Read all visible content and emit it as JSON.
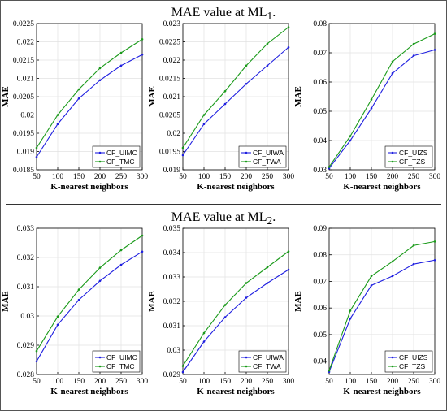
{
  "titles": {
    "top": "MAE value at ML",
    "top_sub": "1",
    "bottom": "MAE value at ML",
    "bottom_sub": "2"
  },
  "colors": {
    "blue": "#1f1fe0",
    "green": "#1a9a1a"
  },
  "chart_data": [
    {
      "type": "line",
      "xlabel": "K-nearest neighbors",
      "ylabel": "MAE",
      "x": [
        50,
        100,
        150,
        200,
        250,
        300
      ],
      "xlim": [
        50,
        300
      ],
      "ylim": [
        0.0185,
        0.0225
      ],
      "yticks": [
        "0.0185",
        "0.019",
        "0.0195",
        "0.02",
        "0.0205",
        "0.021",
        "0.0215",
        "0.022",
        "0.0225"
      ],
      "ytick_values": [
        0.0185,
        0.019,
        0.0195,
        0.02,
        0.0205,
        0.021,
        0.0215,
        0.022,
        0.0225
      ],
      "xticks": [
        "50",
        "100",
        "150",
        "200",
        "250",
        "300"
      ],
      "legend": "bottom-right",
      "series": [
        {
          "name": "CF_UIMC",
          "color": "blue",
          "values": [
            0.01885,
            0.01975,
            0.02045,
            0.02095,
            0.02135,
            0.02165
          ]
        },
        {
          "name": "CF_TMC",
          "color": "green",
          "values": [
            0.0191,
            0.02,
            0.0207,
            0.02128,
            0.0217,
            0.02207
          ]
        }
      ]
    },
    {
      "type": "line",
      "xlabel": "K-nearest neighbors",
      "ylabel": "MAE",
      "x": [
        50,
        100,
        150,
        200,
        250,
        300
      ],
      "xlim": [
        50,
        300
      ],
      "ylim": [
        0.019,
        0.023
      ],
      "yticks": [
        "0.019",
        "0.0195",
        "0.02",
        "0.0205",
        "0.021",
        "0.0215",
        "0.022",
        "0.0225",
        "0.023"
      ],
      "ytick_values": [
        0.019,
        0.0195,
        0.02,
        0.0205,
        0.021,
        0.0215,
        0.022,
        0.0225,
        0.023
      ],
      "xticks": [
        "50",
        "100",
        "150",
        "200",
        "250",
        "300"
      ],
      "legend": "bottom-right",
      "series": [
        {
          "name": "CF_UIWA",
          "color": "blue",
          "values": [
            0.0194,
            0.02025,
            0.0208,
            0.02135,
            0.02185,
            0.02235
          ]
        },
        {
          "name": "CF_TWA",
          "color": "green",
          "values": [
            0.0196,
            0.0205,
            0.02115,
            0.02185,
            0.02245,
            0.0229
          ]
        }
      ]
    },
    {
      "type": "line",
      "xlabel": "K-nearest neighbors",
      "ylabel": "MAE",
      "x": [
        50,
        100,
        150,
        200,
        250,
        300
      ],
      "xlim": [
        50,
        300
      ],
      "ylim": [
        0.03,
        0.08
      ],
      "yticks": [
        "0.03",
        "0.04",
        "0.05",
        "0.06",
        "0.07",
        "0.08"
      ],
      "ytick_values": [
        0.03,
        0.04,
        0.05,
        0.06,
        0.07,
        0.08
      ],
      "xticks": [
        "50",
        "100",
        "150",
        "200",
        "250",
        "300"
      ],
      "legend": "bottom-right",
      "series": [
        {
          "name": "CF_UIZS",
          "color": "blue",
          "values": [
            0.0305,
            0.04,
            0.051,
            0.063,
            0.069,
            0.071
          ]
        },
        {
          "name": "CF_TZS",
          "color": "green",
          "values": [
            0.031,
            0.0415,
            0.054,
            0.067,
            0.073,
            0.0765
          ]
        }
      ]
    },
    {
      "type": "line",
      "xlabel": "K-nearest neighbors",
      "ylabel": "MAE",
      "x": [
        50,
        100,
        150,
        200,
        250,
        300
      ],
      "xlim": [
        50,
        300
      ],
      "ylim": [
        0.028,
        0.033
      ],
      "yticks": [
        "0.028",
        "0.029",
        "0.03",
        "0.031",
        "0.032",
        "0.033"
      ],
      "ytick_values": [
        0.028,
        0.029,
        0.03,
        0.031,
        0.032,
        0.033
      ],
      "xticks": [
        "50",
        "100",
        "150",
        "200",
        "250",
        "300"
      ],
      "legend": "bottom-right",
      "series": [
        {
          "name": "CF_UIMC",
          "color": "blue",
          "values": [
            0.02845,
            0.0297,
            0.03055,
            0.0312,
            0.03175,
            0.0322
          ]
        },
        {
          "name": "CF_TMC",
          "color": "green",
          "values": [
            0.0288,
            0.02998,
            0.0309,
            0.03165,
            0.03225,
            0.03275
          ]
        }
      ]
    },
    {
      "type": "line",
      "xlabel": "K-nearest neighbors",
      "ylabel": "MAE",
      "x": [
        50,
        100,
        150,
        200,
        250,
        300
      ],
      "xlim": [
        50,
        300
      ],
      "ylim": [
        0.029,
        0.035
      ],
      "yticks": [
        "0.029",
        "0.03",
        "0.031",
        "0.032",
        "0.033",
        "0.034",
        "0.035"
      ],
      "ytick_values": [
        0.029,
        0.03,
        0.031,
        0.032,
        0.033,
        0.034,
        0.035
      ],
      "xticks": [
        "50",
        "100",
        "150",
        "200",
        "250",
        "300"
      ],
      "legend": "bottom-right",
      "series": [
        {
          "name": "CF_UIWA",
          "color": "blue",
          "values": [
            0.0291,
            0.03035,
            0.03135,
            0.03215,
            0.03275,
            0.0333
          ]
        },
        {
          "name": "CF_TWA",
          "color": "green",
          "values": [
            0.02935,
            0.0307,
            0.03185,
            0.03275,
            0.0334,
            0.03405
          ]
        }
      ]
    },
    {
      "type": "line",
      "xlabel": "K-nearest neighbors",
      "ylabel": "MAE",
      "x": [
        50,
        100,
        150,
        200,
        250,
        300
      ],
      "xlim": [
        50,
        300
      ],
      "ylim": [
        0.035,
        0.09
      ],
      "yticks": [
        "0.04",
        "0.05",
        "0.06",
        "0.07",
        "0.08",
        "0.09"
      ],
      "ytick_values": [
        0.04,
        0.05,
        0.06,
        0.07,
        0.08,
        0.09
      ],
      "xticks": [
        "50",
        "100",
        "150",
        "200",
        "250",
        "300"
      ],
      "legend": "bottom-right",
      "series": [
        {
          "name": "CF_UIZS",
          "color": "blue",
          "values": [
            0.036,
            0.056,
            0.0685,
            0.072,
            0.0765,
            0.078
          ]
        },
        {
          "name": "CF_TZS",
          "color": "green",
          "values": [
            0.0365,
            0.059,
            0.072,
            0.0775,
            0.0835,
            0.085
          ]
        }
      ]
    }
  ]
}
